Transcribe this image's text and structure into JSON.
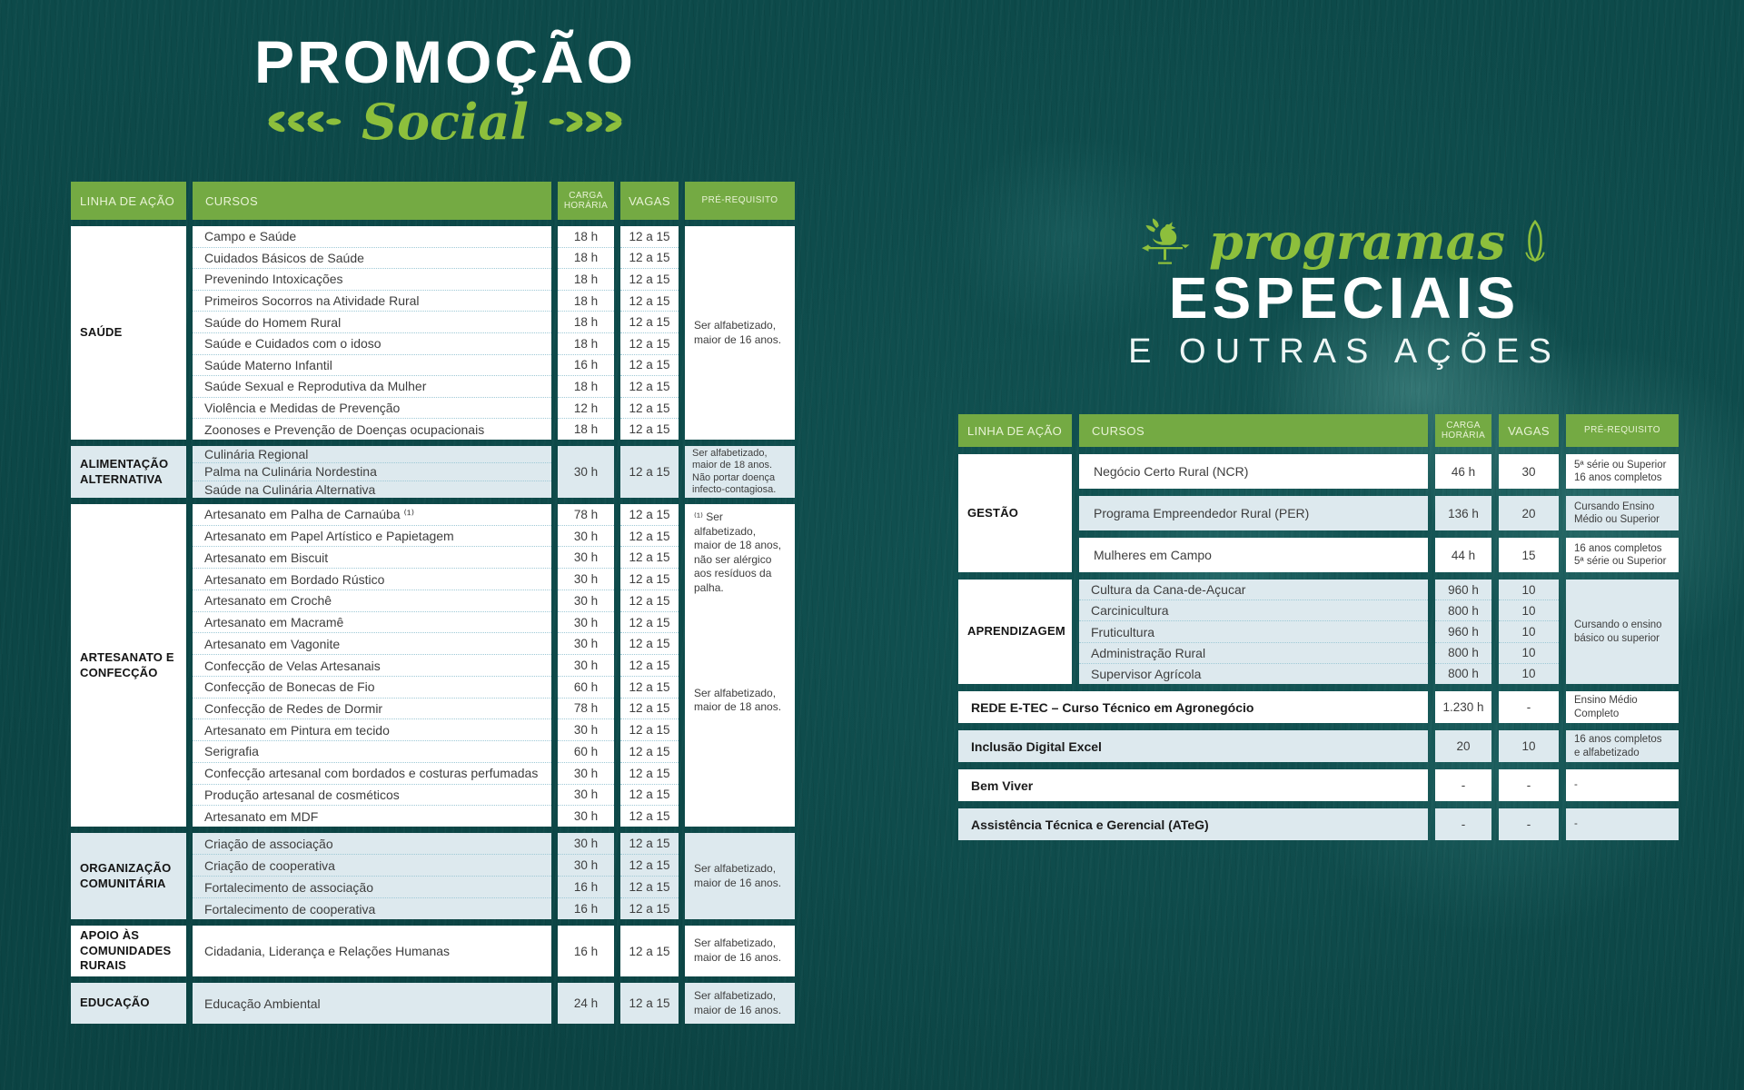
{
  "colors": {
    "background_teal": "#0d4a4a",
    "accent_green": "#74aa43",
    "script_green": "#8dbf3c",
    "row_blue": "#dde9ee",
    "row_white": "#ffffff",
    "text_dark": "#3e3e3e"
  },
  "left": {
    "title_main": "PROMOÇÃO",
    "title_script": "Social",
    "decorations": [
      "laurel-sprig-icon",
      "laurel-sprig-icon"
    ],
    "table": {
      "headers": {
        "linha": "LINHA DE AÇÃO",
        "cursos": "CURSOS",
        "carga": "CARGA HORÁRIA",
        "vagas": "VAGAS",
        "prereq": "PRÉ-REQUISITO"
      },
      "sections": [
        {
          "linha": "SAÚDE",
          "shade": "white",
          "grouped": false,
          "courses": [
            "Campo e Saúde",
            "Cuidados Básicos de Saúde",
            "Prevenindo Intoxicações",
            "Primeiros Socorros na Atividade Rural",
            "Saúde do Homem Rural",
            "Saúde e Cuidados com o idoso",
            "Saúde Materno Infantil",
            "Saúde Sexual e Reprodutiva da Mulher",
            "Violência e Medidas de Prevenção",
            "Zoonoses e Prevenção de Doenças ocupacionais"
          ],
          "cargas": [
            "18 h",
            "18 h",
            "18 h",
            "18 h",
            "18 h",
            "18 h",
            "16 h",
            "18 h",
            "12 h",
            "18 h"
          ],
          "vagas": [
            "12 a 15",
            "12 a 15",
            "12 a 15",
            "12 a 15",
            "12 a 15",
            "12 a 15",
            "12 a 15",
            "12 a 15",
            "12 a 15",
            "12 a 15"
          ],
          "prereq": [
            "Ser alfabetizado, maior de 16 anos."
          ]
        },
        {
          "linha": "ALIMENTAÇÃO ALTERNATIVA",
          "shade": "blue",
          "grouped": true,
          "courses": [
            "Culinária Regional",
            "Palma na Culinária Nordestina",
            "Saúde na Culinária Alternativa"
          ],
          "carga": "30 h",
          "vagas_grouped": "12 a 15",
          "prereq": [
            "Ser alfabetizado, maior de 18 anos. Não portar doença infecto-contagiosa."
          ]
        },
        {
          "linha": "ARTESANATO E CONFECÇÃO",
          "shade": "white",
          "grouped": false,
          "courses": [
            "Artesanato em Palha de Carnaúba ⁽¹⁾",
            "Artesanato em Papel Artístico e Papietagem",
            "Artesanato em Biscuit",
            "Artesanato em Bordado Rústico",
            "Artesanato em Crochê",
            "Artesanato em Macramê",
            "Artesanato em Vagonite",
            "Confecção de Velas Artesanais",
            "Confecção de Bonecas de Fio",
            "Confecção de Redes de Dormir",
            "Artesanato em Pintura em tecido",
            "Serigrafia",
            "Confecção artesanal com bordados e costuras perfumadas",
            "Produção artesanal de cosméticos",
            "Artesanato em MDF"
          ],
          "cargas": [
            "78 h",
            "30 h",
            "30 h",
            "30 h",
            "30 h",
            "30 h",
            "30 h",
            "30 h",
            "60 h",
            "78 h",
            "30 h",
            "60 h",
            "30 h",
            "30 h",
            "30 h"
          ],
          "vagas": [
            "12 a 15",
            "12 a 15",
            "12 a 15",
            "12 a 15",
            "12 a 15",
            "12 a 15",
            "12 a 15",
            "12 a 15",
            "12 a 15",
            "12 a 15",
            "12 a 15",
            "12 a 15",
            "12 a 15",
            "12 a 15",
            "12 a 15"
          ],
          "prereq": [
            "⁽¹⁾ Ser alfabetizado, maior de 18 anos, não ser alérgico aos resíduos da palha.",
            "Ser alfabetizado, maior de 18 anos."
          ]
        },
        {
          "linha": "ORGANIZAÇÃO COMUNITÁRIA",
          "shade": "blue",
          "grouped": false,
          "courses": [
            "Criação de associação",
            "Criação de cooperativa",
            "Fortalecimento de associação",
            "Fortalecimento de cooperativa"
          ],
          "cargas": [
            "30 h",
            "30 h",
            "16 h",
            "16 h"
          ],
          "vagas": [
            "12 a 15",
            "12 a 15",
            "12 a 15",
            "12 a 15"
          ],
          "prereq": [
            "Ser alfabetizado, maior de 16 anos."
          ]
        },
        {
          "linha": "APOIO ÀS COMUNIDADES RURAIS",
          "shade": "white",
          "grouped": true,
          "courses": [
            "Cidadania, Liderança e Relações Humanas"
          ],
          "carga": "16 h",
          "vagas_grouped": "12 a 15",
          "prereq": [
            "Ser alfabetizado, maior de 16 anos."
          ]
        },
        {
          "linha": "EDUCAÇÃO",
          "shade": "blue",
          "grouped": true,
          "courses": [
            "Educação Ambiental"
          ],
          "carga": "24 h",
          "vagas_grouped": "12 a 15",
          "prereq": [
            "Ser alfabetizado, maior de 16 anos."
          ]
        }
      ]
    }
  },
  "right": {
    "title_script": "programas",
    "title_main": "ESPECIAIS",
    "title_sub": "E OUTRAS AÇÕES",
    "icons": {
      "left": "rooster-weathervane-icon",
      "right": "corn-icon"
    },
    "table": {
      "headers": {
        "linha": "LINHA DE AÇÃO",
        "cursos": "CURSOS",
        "carga": "CARGA HORÁRIA",
        "vagas": "VAGAS",
        "prereq": "PRÉ-REQUISITO"
      },
      "gestao": {
        "linha": "GESTÃO",
        "rows": [
          {
            "curso": "Negócio Certo Rural (NCR)",
            "carga": "46 h",
            "vagas": "30",
            "prereq": "5ª série ou Superior 16 anos completos",
            "shade": "white"
          },
          {
            "curso": "Programa Empreendedor Rural (PER)",
            "carga": "136 h",
            "vagas": "20",
            "prereq": "Cursando Ensino Médio ou Superior",
            "shade": "blue"
          },
          {
            "curso": "Mulheres em Campo",
            "carga": "44 h",
            "vagas": "15",
            "prereq": "16 anos completos 5ª série ou Superior",
            "shade": "white"
          }
        ]
      },
      "aprendizagem": {
        "linha": "APRENDIZAGEM",
        "shade": "blue",
        "courses": [
          "Cultura da Cana-de-Açucar",
          "Carcinicultura",
          "Fruticultura",
          "Administração Rural",
          "Supervisor Agrícola"
        ],
        "cargas": [
          "960 h",
          "800 h",
          "960 h",
          "800 h",
          "800 h"
        ],
        "vagas": [
          "10",
          "10",
          "10",
          "10",
          "10"
        ],
        "prereq": "Cursando o ensino básico ou superior"
      },
      "wide_rows": [
        {
          "label": "REDE  E-TEC – Curso Técnico em Agronegócio",
          "carga": "1.230 h",
          "vagas": "-",
          "prereq": "Ensino Médio Completo",
          "shade": "white"
        },
        {
          "label": "Inclusão Digital Excel",
          "carga": "20",
          "vagas": "10",
          "prereq": "16 anos completos e alfabetizado",
          "shade": "blue"
        },
        {
          "label": "Bem Viver",
          "carga": "-",
          "vagas": "-",
          "prereq": "-",
          "shade": "white"
        },
        {
          "label": "Assistência Técnica e Gerencial (ATeG)",
          "carga": "-",
          "vagas": "-",
          "prereq": "-",
          "shade": "blue"
        }
      ]
    }
  }
}
